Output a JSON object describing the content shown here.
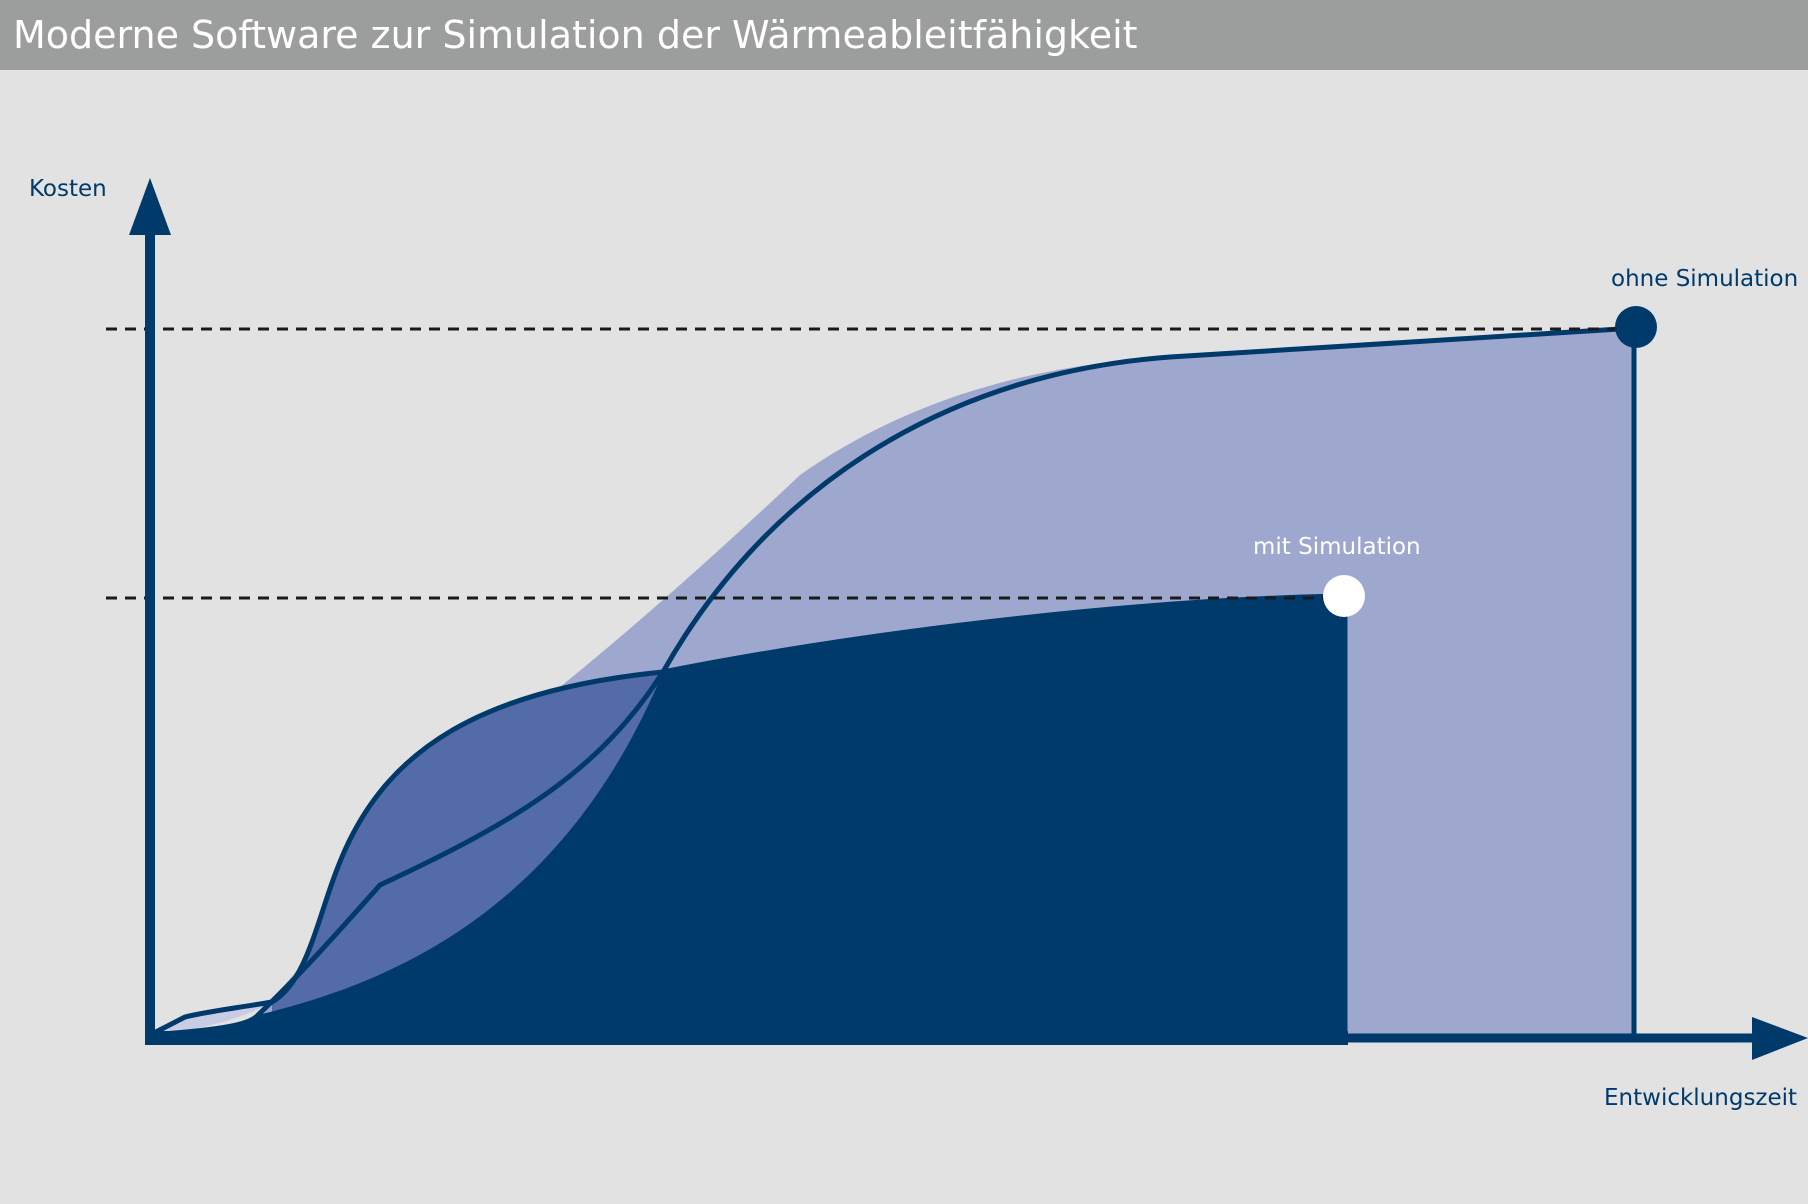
{
  "header": {
    "title": "Moderne Software zur Simulation der Wärmeableitfähigkeit"
  },
  "axes": {
    "y_label": "Kosten",
    "x_label": "Entwicklungszeit"
  },
  "curves": {
    "without_simulation_label": "ohne Simulation",
    "with_simulation_label": "mit Simulation"
  },
  "colors": {
    "background": "#e2e2e3",
    "header": "#9c9d9d",
    "dark_navy": "#003a6b",
    "light_fill": "#9ea8cf",
    "mid_fill": "#536ca8",
    "pale_fill": "#c8cde3"
  }
}
